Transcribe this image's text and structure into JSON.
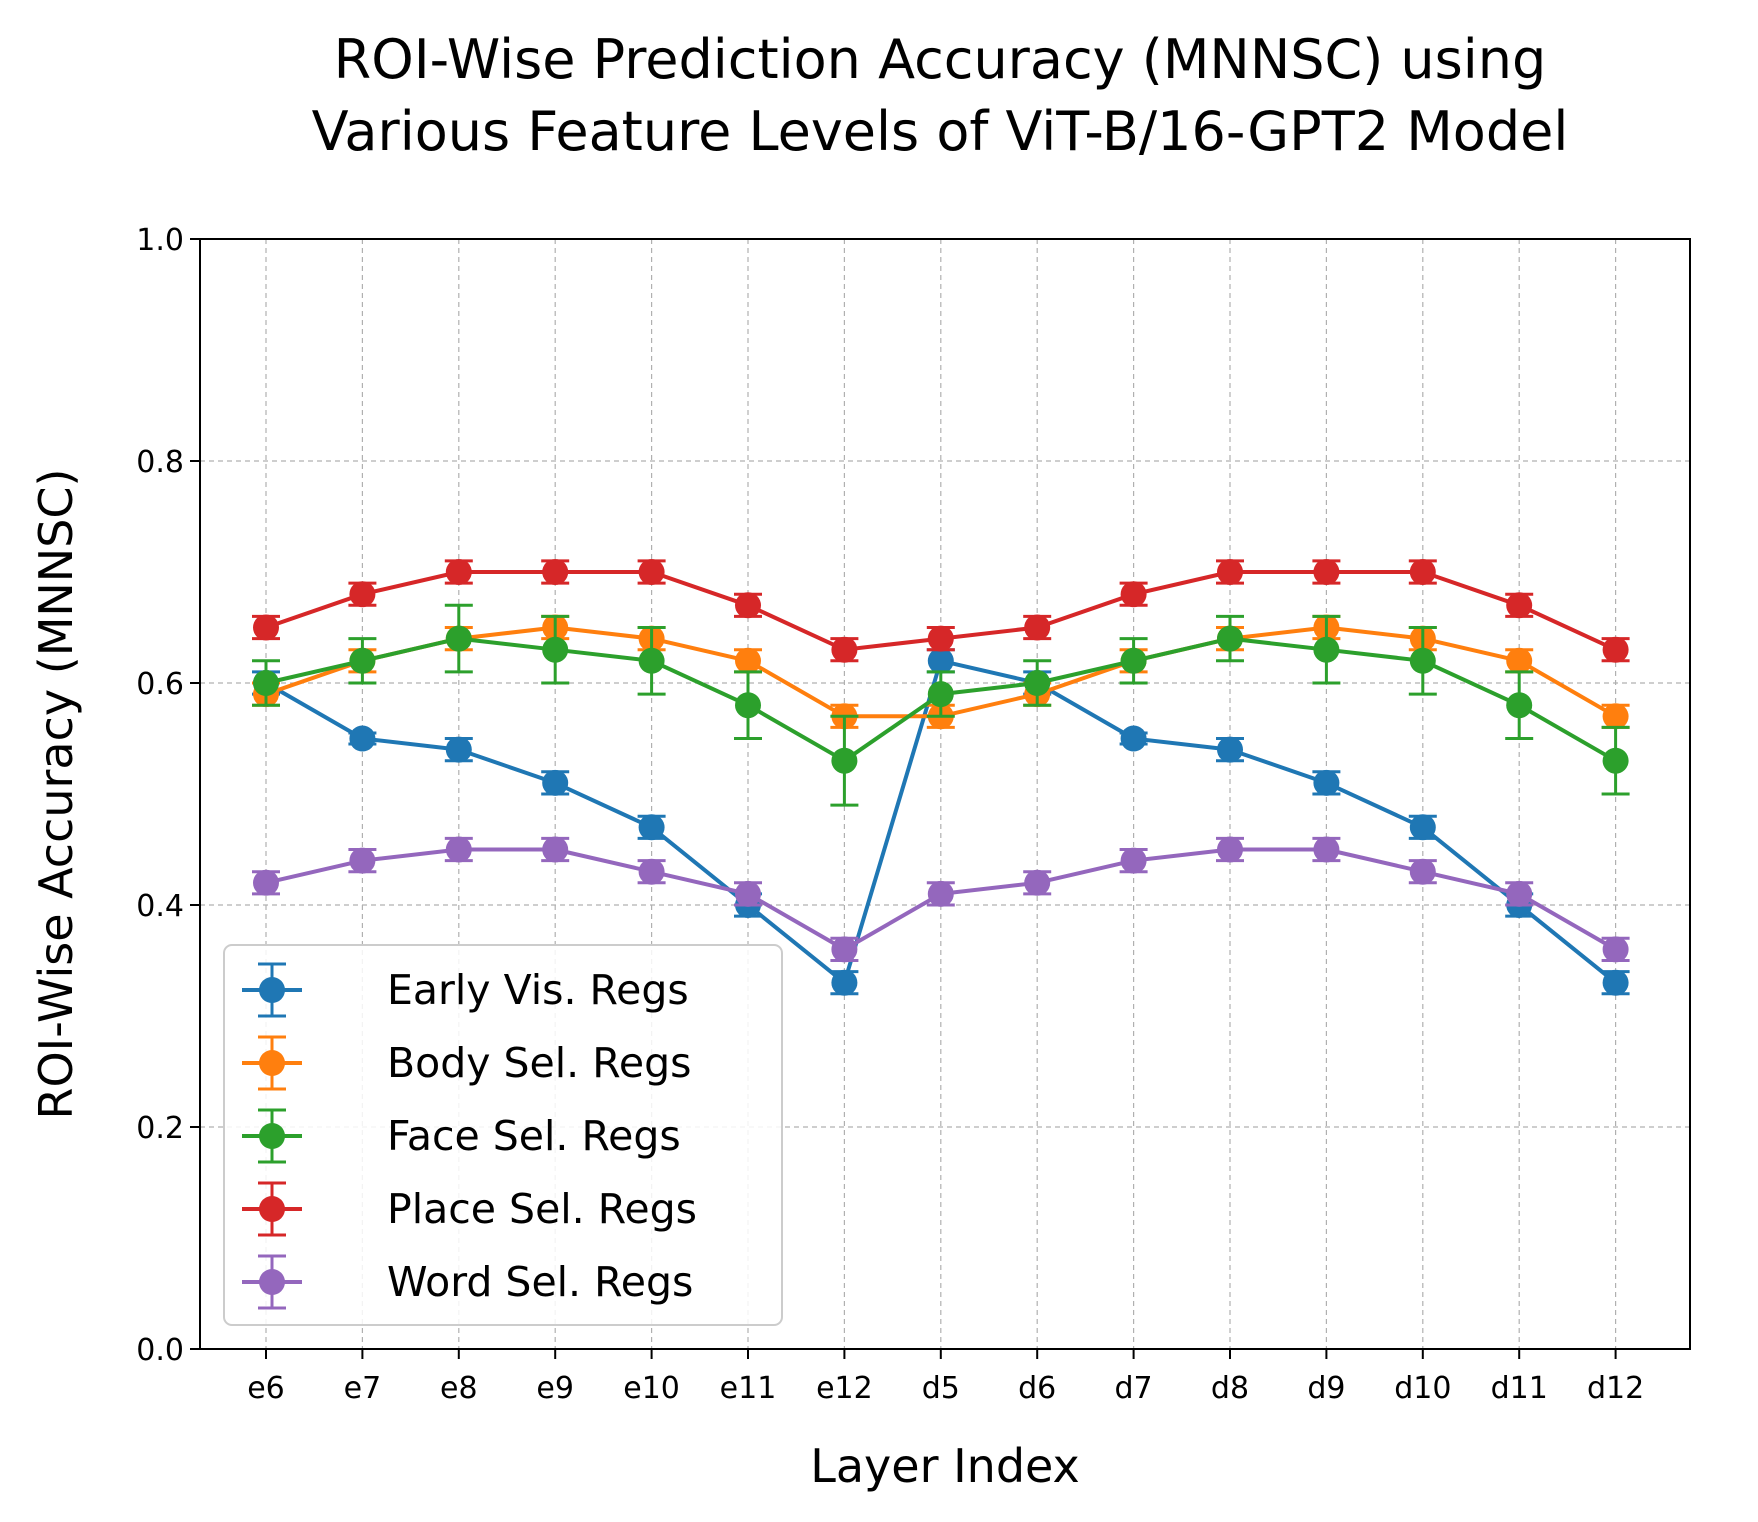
{
  "chart_data": {
    "type": "line",
    "title_lines": [
      "ROI-Wise Prediction Accuracy (MNNSC) using",
      "Various Feature Levels of ViT-B/16-GPT2 Model"
    ],
    "xlabel": "Layer Index",
    "ylabel": "ROI-Wise Accuracy (MNNSC)",
    "ylim": [
      0.0,
      1.0
    ],
    "yticks": [
      "0.0",
      "0.2",
      "0.4",
      "0.6",
      "0.8",
      "1.0"
    ],
    "categories": [
      "e6",
      "e7",
      "e8",
      "e9",
      "e10",
      "e11",
      "e12",
      "d5",
      "d6",
      "d7",
      "d8",
      "d9",
      "d10",
      "d11",
      "d12"
    ],
    "grid": true,
    "legend_position": "lower-left",
    "series": [
      {
        "name": "Early Vis. Regs",
        "color": "#1f77b4",
        "values": [
          0.6,
          0.55,
          0.54,
          0.51,
          0.47,
          0.4,
          0.33,
          0.62,
          0.6,
          0.55,
          0.54,
          0.51,
          0.47,
          0.4,
          0.33
        ],
        "errors": [
          0.01,
          0.005,
          0.01,
          0.01,
          0.01,
          0.01,
          0.01,
          0.01,
          0.01,
          0.005,
          0.01,
          0.01,
          0.01,
          0.01,
          0.01
        ]
      },
      {
        "name": "Body Sel. Regs",
        "color": "#ff7f0e",
        "values": [
          0.59,
          0.62,
          0.64,
          0.65,
          0.64,
          0.62,
          0.57,
          0.57,
          0.59,
          0.62,
          0.64,
          0.65,
          0.64,
          0.62,
          0.57
        ],
        "errors": [
          0.01,
          0.01,
          0.01,
          0.01,
          0.01,
          0.01,
          0.01,
          0.01,
          0.01,
          0.01,
          0.01,
          0.01,
          0.01,
          0.01,
          0.01
        ]
      },
      {
        "name": "Face Sel. Regs",
        "color": "#2ca02c",
        "values": [
          0.6,
          0.62,
          0.64,
          0.63,
          0.62,
          0.58,
          0.53,
          0.59,
          0.6,
          0.62,
          0.64,
          0.63,
          0.62,
          0.58,
          0.53
        ],
        "errors": [
          0.02,
          0.02,
          0.03,
          0.03,
          0.03,
          0.03,
          0.04,
          0.02,
          0.02,
          0.02,
          0.02,
          0.03,
          0.03,
          0.03,
          0.03
        ]
      },
      {
        "name": "Place Sel. Regs",
        "color": "#d62728",
        "values": [
          0.65,
          0.68,
          0.7,
          0.7,
          0.7,
          0.67,
          0.63,
          0.64,
          0.65,
          0.68,
          0.7,
          0.7,
          0.7,
          0.67,
          0.63
        ],
        "errors": [
          0.01,
          0.01,
          0.01,
          0.01,
          0.01,
          0.01,
          0.01,
          0.01,
          0.01,
          0.01,
          0.01,
          0.01,
          0.01,
          0.01,
          0.01
        ]
      },
      {
        "name": "Word Sel. Regs",
        "color": "#9467bd",
        "values": [
          0.42,
          0.44,
          0.45,
          0.45,
          0.43,
          0.41,
          0.36,
          0.41,
          0.42,
          0.44,
          0.45,
          0.45,
          0.43,
          0.41,
          0.36
        ],
        "errors": [
          0.01,
          0.01,
          0.01,
          0.01,
          0.01,
          0.01,
          0.01,
          0.01,
          0.01,
          0.01,
          0.01,
          0.01,
          0.01,
          0.01,
          0.01
        ]
      }
    ]
  }
}
